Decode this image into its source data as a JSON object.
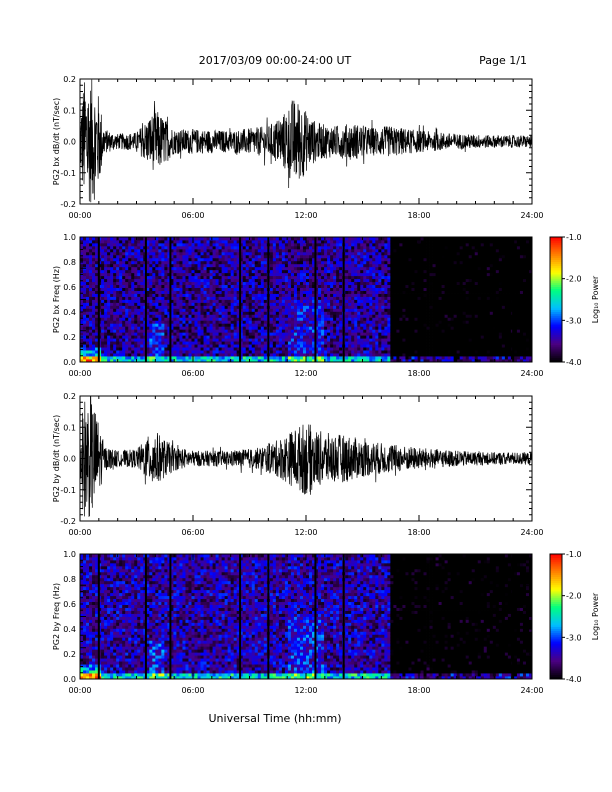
{
  "header": {
    "date_range": "2017/03/09  00:00-24:00 UT",
    "page": "Page 1/1"
  },
  "footer": {
    "xlabel": "Universal Time (hh:mm)"
  },
  "colorbar": {
    "label": "Log₁₀ Power",
    "ticks": [
      "-1.0",
      "-2.0",
      "-3.0",
      "-4.0"
    ],
    "range": [
      -4.0,
      -1.0
    ],
    "colors": [
      "#000000",
      "#4b0082",
      "#0000ff",
      "#00bfff",
      "#00ff80",
      "#ffff00",
      "#ff8000",
      "#ff0000"
    ]
  },
  "chart_data": [
    {
      "type": "line",
      "id": "bx-dbdt",
      "ylabel": "PG2 bx dB/dt (nT/sec)",
      "xlim": [
        0,
        24
      ],
      "ylim": [
        -0.2,
        0.2
      ],
      "x_ticks": [
        "00:00",
        "06:00",
        "12:00",
        "18:00",
        "24:00"
      ],
      "y_ticks": [
        "0.2",
        "0.1",
        "0.0",
        "-0.1",
        "-0.2"
      ],
      "envelope": {
        "x": [
          0,
          0.2,
          0.4,
          0.7,
          1.0,
          1.3,
          2.0,
          3.0,
          3.8,
          4.1,
          4.4,
          5.0,
          6.0,
          8.0,
          10.0,
          10.8,
          11.3,
          11.7,
          12.1,
          12.6,
          13.5,
          14.5,
          15.5,
          16.5,
          18.0,
          20.0,
          22.0,
          24.0
        ],
        "amplitude": [
          0.08,
          0.2,
          0.2,
          0.2,
          0.15,
          0.04,
          0.025,
          0.03,
          0.09,
          0.1,
          0.08,
          0.04,
          0.04,
          0.035,
          0.05,
          0.09,
          0.14,
          0.13,
          0.09,
          0.06,
          0.05,
          0.06,
          0.045,
          0.05,
          0.035,
          0.025,
          0.02,
          0.02
        ]
      }
    },
    {
      "type": "heatmap",
      "id": "bx-freq",
      "ylabel": "PG2 bx Freq (Hz)",
      "xlim": [
        0,
        24
      ],
      "ylim": [
        0.0,
        1.0
      ],
      "x_ticks": [
        "00:00",
        "06:00",
        "12:00",
        "18:00",
        "24:00"
      ],
      "y_ticks": [
        "1.0",
        "0.8",
        "0.6",
        "0.4",
        "0.2",
        "0.0"
      ],
      "value_units": "log10 power",
      "background_level": -3.5,
      "quiet_after_hour": 16.5,
      "gap_hours": [
        1.0,
        3.5,
        4.8,
        8.5,
        10.0,
        12.5,
        14.0,
        23.0
      ]
    },
    {
      "type": "line",
      "id": "by-dbdt",
      "ylabel": "PG2 by dB/dt (nT/sec)",
      "xlim": [
        0,
        24
      ],
      "ylim": [
        -0.2,
        0.2
      ],
      "x_ticks": [
        "00:00",
        "06:00",
        "12:00",
        "18:00",
        "24:00"
      ],
      "y_ticks": [
        "0.2",
        "0.1",
        "0.0",
        "-0.1",
        "-0.2"
      ],
      "envelope": {
        "x": [
          0,
          0.2,
          0.4,
          0.7,
          1.0,
          1.3,
          2.0,
          3.0,
          3.6,
          3.9,
          4.3,
          5.0,
          6.0,
          8.0,
          9.5,
          10.5,
          11.5,
          12.0,
          12.6,
          13.3,
          14.2,
          15.0,
          16.0,
          18.0,
          20.0,
          22.0,
          24.0
        ],
        "amplitude": [
          0.06,
          0.2,
          0.2,
          0.18,
          0.12,
          0.04,
          0.025,
          0.03,
          0.07,
          0.1,
          0.07,
          0.04,
          0.025,
          0.025,
          0.035,
          0.06,
          0.1,
          0.12,
          0.09,
          0.08,
          0.075,
          0.06,
          0.05,
          0.035,
          0.025,
          0.02,
          0.02
        ]
      }
    },
    {
      "type": "heatmap",
      "id": "by-freq",
      "ylabel": "PG2 by Freq (Hz)",
      "xlim": [
        0,
        24
      ],
      "ylim": [
        0.0,
        1.0
      ],
      "x_ticks": [
        "00:00",
        "06:00",
        "12:00",
        "18:00",
        "24:00"
      ],
      "y_ticks": [
        "1.0",
        "0.8",
        "0.6",
        "0.4",
        "0.2",
        "0.0"
      ],
      "value_units": "log10 power",
      "background_level": -3.45,
      "quiet_after_hour": 16.5,
      "gap_hours": [
        1.0,
        3.5,
        4.8,
        8.5,
        10.0,
        12.5,
        14.0,
        23.0
      ]
    }
  ]
}
